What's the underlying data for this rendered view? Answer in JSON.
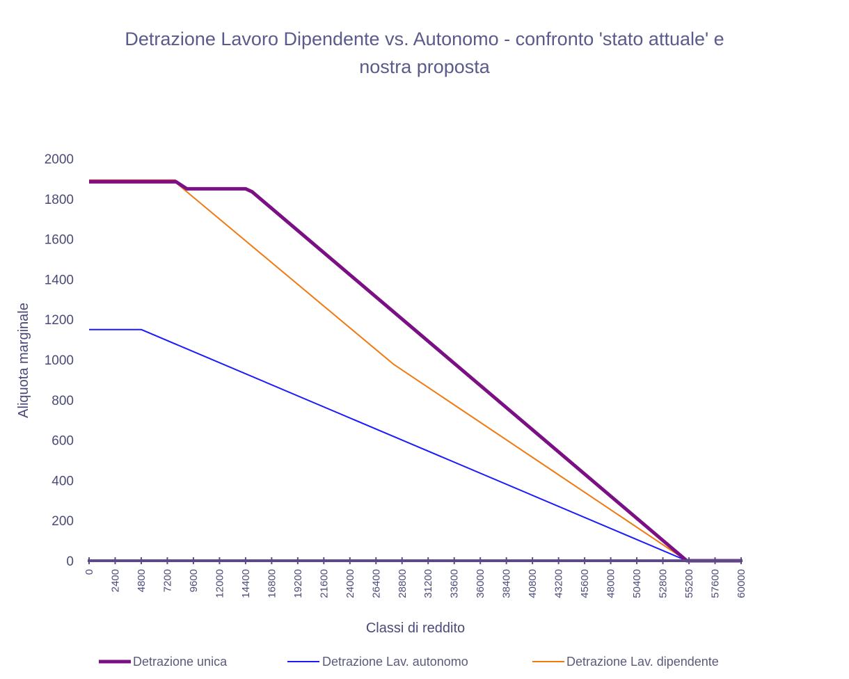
{
  "chart_data": {
    "type": "line",
    "title": "Detrazione Lavoro Dipendente vs. Autonomo - confronto 'stato attuale' e nostra proposta",
    "title_lines": [
      "Detrazione Lavoro Dipendente vs. Autonomo - confronto 'stato attuale' e",
      "nostra proposta"
    ],
    "xlabel": "Classi di reddito",
    "ylabel": "Aliquota marginale",
    "xlim": [
      0,
      60000
    ],
    "ylim": [
      0,
      2000
    ],
    "x_ticks": [
      "0",
      "2400",
      "4800",
      "7200",
      "9600",
      "12000",
      "14400",
      "16800",
      "19200",
      "21600",
      "24000",
      "26400",
      "28800",
      "31200",
      "33600",
      "36000",
      "38400",
      "40800",
      "43200",
      "45600",
      "48000",
      "50400",
      "52800",
      "55200",
      "57600",
      "60000"
    ],
    "y_ticks": [
      "0",
      "200",
      "400",
      "600",
      "800",
      "1000",
      "1200",
      "1400",
      "1600",
      "1800",
      "2000"
    ],
    "grid": false,
    "legend_position": "bottom",
    "series": [
      {
        "name": "Detrazione unica",
        "color": "#7b1085",
        "x": [
          0,
          8000,
          9000,
          14400,
          15000,
          55000,
          60000
        ],
        "y": [
          1885,
          1885,
          1850,
          1850,
          1835,
          0,
          0
        ]
      },
      {
        "name": "Detrazione Lav. autonomo",
        "color": "#1a1aff",
        "x": [
          0,
          4800,
          55000,
          60000
        ],
        "y": [
          1150,
          1150,
          0,
          0
        ]
      },
      {
        "name": "Detrazione Lav. dipendente",
        "color": "#f07a10",
        "x": [
          0,
          8000,
          28000,
          55000,
          60000
        ],
        "y": [
          1880,
          1880,
          978,
          0,
          0
        ]
      },
      {
        "name": "",
        "color": "#e83a2a",
        "x": [
          0,
          8000
        ],
        "y": [
          1893,
          1893
        ]
      }
    ]
  }
}
